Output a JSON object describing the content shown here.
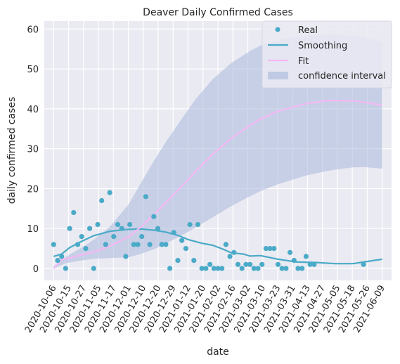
{
  "chart_data": {
    "type": "line",
    "title": "Deaver Daily Confirmed Cases",
    "xlabel": "date",
    "ylabel": "daily confirmed cases",
    "x_start": "2020-10-06",
    "x_end": "2021-06-09",
    "xlim": [
      "2020-09-29",
      "2021-06-16"
    ],
    "ylim": [
      -3,
      62
    ],
    "yticks": [
      0,
      10,
      20,
      30,
      40,
      50,
      60
    ],
    "xtick_labels": [
      "2020-10-06",
      "2020-10-15",
      "2020-10-27",
      "2020-11-05",
      "2020-11-17",
      "2020-12-01",
      "2020-12-10",
      "2020-12-20",
      "2020-12-29",
      "2021-01-12",
      "2021-01-20",
      "2021-02-02",
      "2021-02-16",
      "2021-03-02",
      "2021-03-10",
      "2021-03-23",
      "2021-03-31",
      "2021-04-13",
      "2021-04-27",
      "2021-05-05",
      "2021-05-18",
      "2021-05-26",
      "2021-06-09"
    ],
    "grid": true,
    "legend_position": "top-right",
    "legend": [
      "Real",
      "Smoothing",
      "Fit",
      "confidence interval"
    ],
    "colors": {
      "background": "#eaeaf2",
      "grid": "#ffffff",
      "real": "#4aaac8",
      "smoothing": "#4aaac8",
      "fit": "#f5b8f5",
      "confidence": "#a9b8dc"
    },
    "series": [
      {
        "name": "Real",
        "kind": "scatter",
        "points": [
          [
            "2020-10-06",
            6
          ],
          [
            "2020-10-09",
            2
          ],
          [
            "2020-10-12",
            3
          ],
          [
            "2020-10-15",
            0
          ],
          [
            "2020-10-18",
            10
          ],
          [
            "2020-10-21",
            14
          ],
          [
            "2020-10-24",
            6
          ],
          [
            "2020-10-27",
            8
          ],
          [
            "2020-10-30",
            5
          ],
          [
            "2020-11-02",
            10
          ],
          [
            "2020-11-05",
            0
          ],
          [
            "2020-11-08",
            11
          ],
          [
            "2020-11-11",
            17
          ],
          [
            "2020-11-14",
            6
          ],
          [
            "2020-11-17",
            19
          ],
          [
            "2020-11-20",
            8
          ],
          [
            "2020-11-23",
            11
          ],
          [
            "2020-11-26",
            10
          ],
          [
            "2020-11-29",
            3
          ],
          [
            "2020-12-02",
            11
          ],
          [
            "2020-12-05",
            6
          ],
          [
            "2020-12-08",
            6
          ],
          [
            "2020-12-11",
            8
          ],
          [
            "2020-12-14",
            18
          ],
          [
            "2020-12-17",
            6
          ],
          [
            "2020-12-20",
            13
          ],
          [
            "2020-12-23",
            10
          ],
          [
            "2020-12-26",
            6
          ],
          [
            "2020-12-29",
            6
          ],
          [
            "2021-01-01",
            0
          ],
          [
            "2021-01-04",
            9
          ],
          [
            "2021-01-07",
            2
          ],
          [
            "2021-01-10",
            7
          ],
          [
            "2021-01-13",
            5
          ],
          [
            "2021-01-16",
            11
          ],
          [
            "2021-01-19",
            2
          ],
          [
            "2021-01-22",
            11
          ],
          [
            "2021-01-25",
            0
          ],
          [
            "2021-01-28",
            0
          ],
          [
            "2021-01-31",
            1
          ],
          [
            "2021-02-03",
            0
          ],
          [
            "2021-02-06",
            0
          ],
          [
            "2021-02-09",
            0
          ],
          [
            "2021-02-12",
            6
          ],
          [
            "2021-02-15",
            3
          ],
          [
            "2021-02-18",
            4
          ],
          [
            "2021-02-21",
            1
          ],
          [
            "2021-02-24",
            0
          ],
          [
            "2021-02-27",
            1
          ],
          [
            "2021-03-02",
            1
          ],
          [
            "2021-03-05",
            0
          ],
          [
            "2021-03-08",
            0
          ],
          [
            "2021-03-11",
            1
          ],
          [
            "2021-03-14",
            5
          ],
          [
            "2021-03-17",
            5
          ],
          [
            "2021-03-20",
            5
          ],
          [
            "2021-03-23",
            1
          ],
          [
            "2021-03-26",
            0
          ],
          [
            "2021-03-29",
            0
          ],
          [
            "2021-04-01",
            4
          ],
          [
            "2021-04-04",
            2
          ],
          [
            "2021-04-07",
            0
          ],
          [
            "2021-04-10",
            0
          ],
          [
            "2021-04-13",
            3
          ],
          [
            "2021-04-16",
            1
          ],
          [
            "2021-04-19",
            1
          ],
          [
            "2021-05-26",
            1
          ]
        ]
      },
      {
        "name": "Smoothing",
        "kind": "line",
        "points": [
          [
            "2020-10-06",
            3
          ],
          [
            "2020-10-12",
            3.6
          ],
          [
            "2020-10-18",
            5.2
          ],
          [
            "2020-10-27",
            6.8
          ],
          [
            "2020-11-05",
            8.2
          ],
          [
            "2020-11-17",
            9.3
          ],
          [
            "2020-12-01",
            9.8
          ],
          [
            "2020-12-10",
            9.9
          ],
          [
            "2020-12-20",
            9.6
          ],
          [
            "2020-12-29",
            9.1
          ],
          [
            "2021-01-07",
            8.3
          ],
          [
            "2021-01-15",
            7.2
          ],
          [
            "2021-01-25",
            6.3
          ],
          [
            "2021-02-02",
            5.8
          ],
          [
            "2021-02-10",
            4.8
          ],
          [
            "2021-02-16",
            3.9
          ],
          [
            "2021-02-25",
            3.6
          ],
          [
            "2021-03-02",
            3.1
          ],
          [
            "2021-03-10",
            3.2
          ],
          [
            "2021-03-23",
            2.3
          ],
          [
            "2021-04-06",
            1.6
          ],
          [
            "2021-04-20",
            1.5
          ],
          [
            "2021-05-05",
            1.2
          ],
          [
            "2021-05-18",
            1.2
          ],
          [
            "2021-05-26",
            1.6
          ],
          [
            "2021-06-09",
            2.3
          ]
        ]
      },
      {
        "name": "Fit",
        "kind": "line",
        "points": [
          [
            "2020-10-06",
            0
          ],
          [
            "2020-10-12",
            2.2
          ],
          [
            "2020-10-18",
            2.6
          ],
          [
            "2020-10-27",
            3.4
          ],
          [
            "2020-11-05",
            4.1
          ],
          [
            "2020-11-17",
            5.6
          ],
          [
            "2020-12-01",
            7.9
          ],
          [
            "2020-12-10",
            10.3
          ],
          [
            "2020-12-20",
            13.4
          ],
          [
            "2020-12-29",
            16.5
          ],
          [
            "2021-01-12",
            21.3
          ],
          [
            "2021-01-20",
            24.2
          ],
          [
            "2021-02-02",
            28.6
          ],
          [
            "2021-02-16",
            32.6
          ],
          [
            "2021-03-02",
            35.8
          ],
          [
            "2021-03-10",
            37.5
          ],
          [
            "2021-03-23",
            39.4
          ],
          [
            "2021-04-13",
            41.3
          ],
          [
            "2021-04-27",
            42
          ],
          [
            "2021-05-05",
            42.1
          ],
          [
            "2021-05-18",
            42
          ],
          [
            "2021-05-26",
            41.7
          ],
          [
            "2021-06-09",
            40.9
          ]
        ]
      },
      {
        "name": "confidence interval",
        "kind": "band",
        "upper": [
          [
            "2020-10-06",
            0.5
          ],
          [
            "2020-10-15",
            2.9
          ],
          [
            "2020-10-27",
            5.2
          ],
          [
            "2020-11-05",
            7.2
          ],
          [
            "2020-11-17",
            10.4
          ],
          [
            "2020-12-01",
            16
          ],
          [
            "2020-12-10",
            21.2
          ],
          [
            "2020-12-20",
            26.9
          ],
          [
            "2020-12-29",
            31.7
          ],
          [
            "2021-01-12",
            38.5
          ],
          [
            "2021-01-20",
            42.3
          ],
          [
            "2021-02-02",
            47.4
          ],
          [
            "2021-02-16",
            51.5
          ],
          [
            "2021-03-02",
            54.5
          ],
          [
            "2021-03-10",
            55.9
          ],
          [
            "2021-03-23",
            57.3
          ],
          [
            "2021-04-13",
            58.4
          ],
          [
            "2021-04-27",
            58.6
          ],
          [
            "2021-05-05",
            58.6
          ],
          [
            "2021-05-18",
            58.3
          ],
          [
            "2021-05-26",
            57.9
          ],
          [
            "2021-06-09",
            56.9
          ]
        ],
        "lower": [
          [
            "2020-10-06",
            0
          ],
          [
            "2020-10-15",
            1.3
          ],
          [
            "2020-10-27",
            2
          ],
          [
            "2020-11-05",
            2.4
          ],
          [
            "2020-11-17",
            2.6
          ],
          [
            "2020-12-01",
            2.8
          ],
          [
            "2020-12-10",
            3.6
          ],
          [
            "2020-12-20",
            4.8
          ],
          [
            "2020-12-29",
            6.2
          ],
          [
            "2021-01-12",
            8.7
          ],
          [
            "2021-01-20",
            10.2
          ],
          [
            "2021-02-02",
            12.8
          ],
          [
            "2021-02-16",
            15.6
          ],
          [
            "2021-03-02",
            18.1
          ],
          [
            "2021-03-10",
            19.4
          ],
          [
            "2021-03-23",
            21.1
          ],
          [
            "2021-04-13",
            23.3
          ],
          [
            "2021-04-27",
            24.3
          ],
          [
            "2021-05-05",
            24.8
          ],
          [
            "2021-05-18",
            25.3
          ],
          [
            "2021-05-26",
            25.4
          ],
          [
            "2021-06-09",
            25
          ]
        ]
      }
    ]
  }
}
